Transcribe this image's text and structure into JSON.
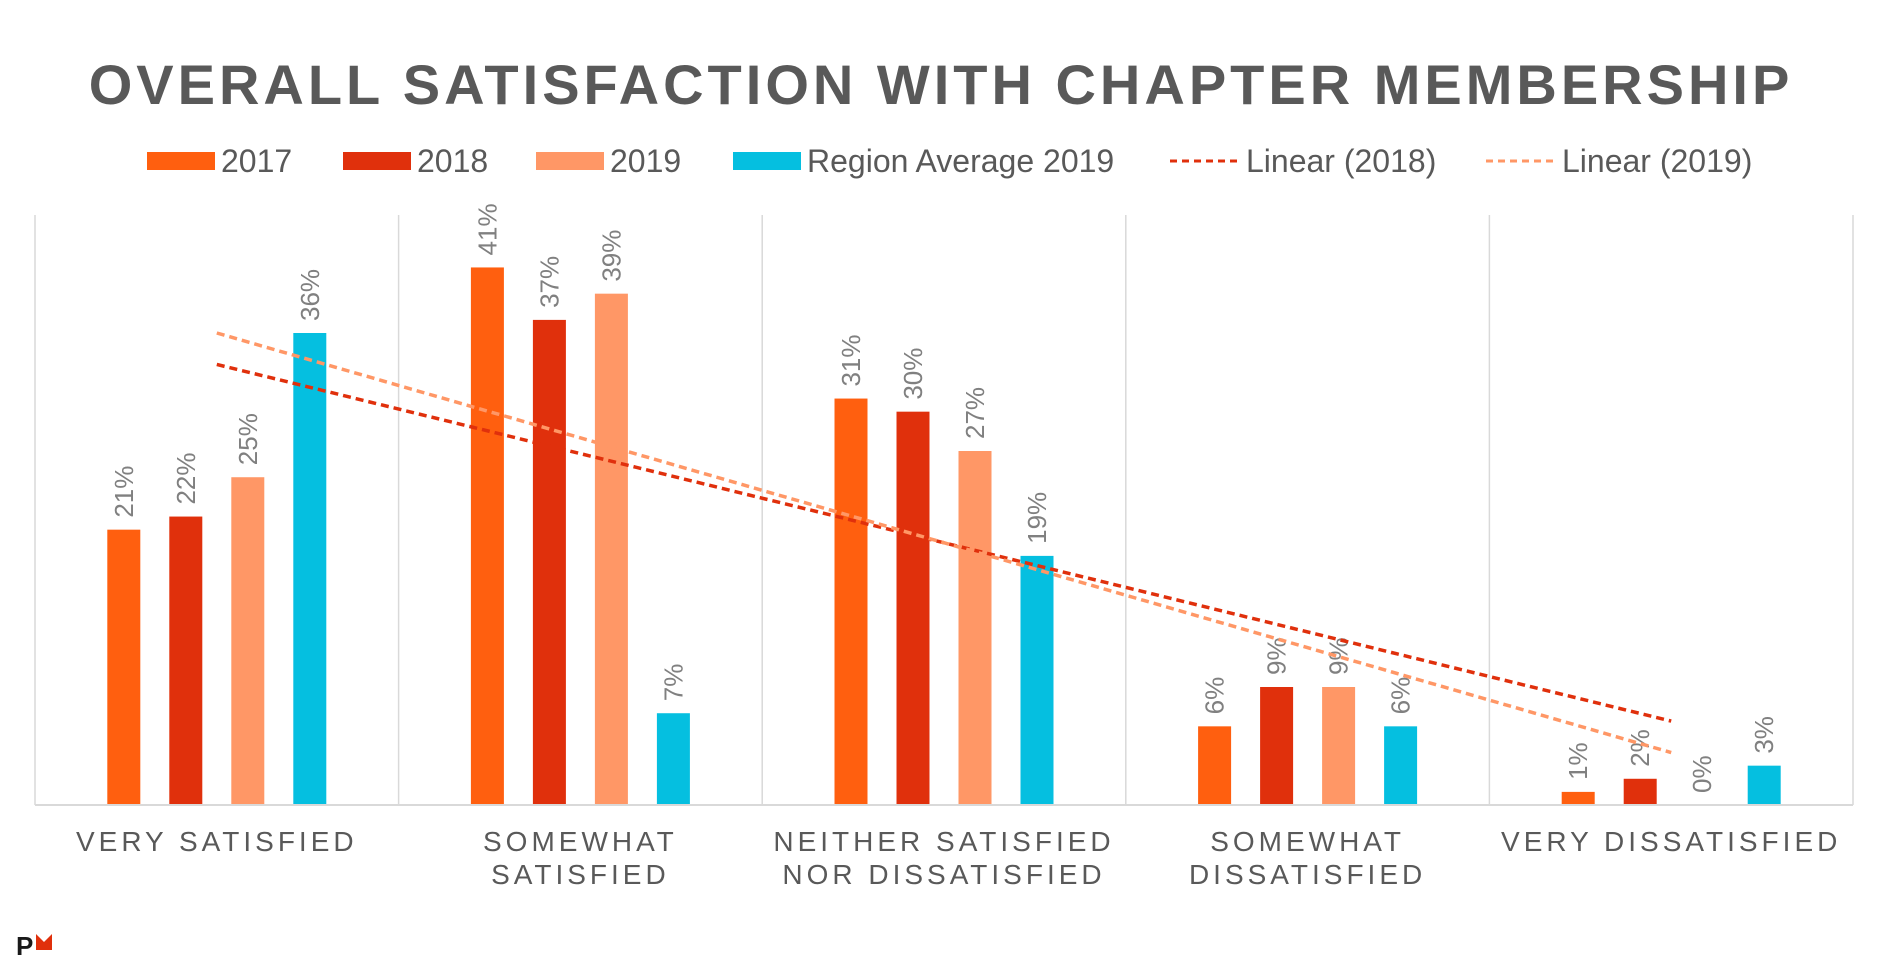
{
  "chart_data": {
    "type": "bar",
    "title": "OVERALL SATISFACTION WITH CHAPTER MEMBERSHIP",
    "categories": [
      [
        "VERY SATISFIED"
      ],
      [
        "SOMEWHAT",
        "SATISFIED"
      ],
      [
        "NEITHER SATISFIED",
        "NOR DISSATISFIED"
      ],
      [
        "SOMEWHAT",
        "DISSATISFIED"
      ],
      [
        "VERY DISSATISFIED"
      ]
    ],
    "series": [
      {
        "name": "2017",
        "color": "#FF5F0F",
        "values": [
          21,
          41,
          31,
          6,
          1
        ],
        "labels": [
          "21%",
          "41%",
          "31%",
          "6%",
          "1%"
        ]
      },
      {
        "name": "2018",
        "color": "#E0300C",
        "values": [
          22,
          37,
          30,
          9,
          2
        ],
        "labels": [
          "22%",
          "37%",
          "30%",
          "9%",
          "2%"
        ]
      },
      {
        "name": "2019",
        "color": "#FF9766",
        "values": [
          25,
          39,
          27,
          9,
          0
        ],
        "labels": [
          "25%",
          "39%",
          "27%",
          "9%",
          "0%"
        ]
      },
      {
        "name": "Region Average 2019",
        "color": "#05BFE0",
        "values": [
          36,
          7,
          19,
          6,
          3
        ],
        "labels": [
          "36%",
          "7%",
          "19%",
          "6%",
          "3%"
        ]
      }
    ],
    "trendlines": [
      {
        "name": "Linear (2018)",
        "series": "2018",
        "color": "#E0300C",
        "dashed": true
      },
      {
        "name": "Linear (2019)",
        "series": "2019",
        "color": "#FF9766",
        "dashed": true
      }
    ],
    "ylim": [
      0,
      45
    ],
    "grid": "vertical",
    "legend": "top",
    "text_color": "#595959",
    "label_color": "#808080"
  },
  "logo": {
    "text": "PMI",
    "icon": "pmi-logo-icon"
  }
}
